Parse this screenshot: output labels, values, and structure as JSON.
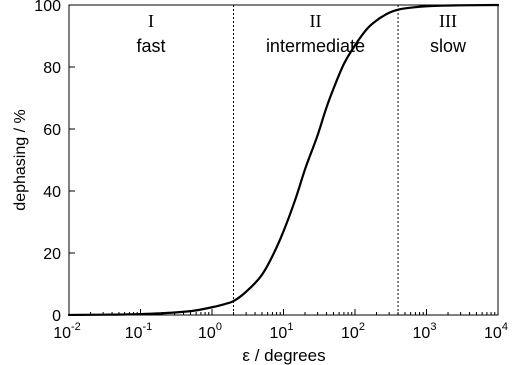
{
  "chart_data": {
    "type": "line",
    "title": "",
    "xlabel": "ε / degrees",
    "ylabel": "dephasing / %",
    "xscale": "log",
    "xlim": [
      0.01,
      10000
    ],
    "ylim": [
      0,
      100
    ],
    "grid": false,
    "x_ticks": [
      {
        "base": "10",
        "exp": "-2",
        "value": 0.01
      },
      {
        "base": "10",
        "exp": "-1",
        "value": 0.1
      },
      {
        "base": "10",
        "exp": "0",
        "value": 1
      },
      {
        "base": "10",
        "exp": "1",
        "value": 10
      },
      {
        "base": "10",
        "exp": "2",
        "value": 100
      },
      {
        "base": "10",
        "exp": "3",
        "value": 1000
      },
      {
        "base": "10",
        "exp": "4",
        "value": 10000
      }
    ],
    "y_ticks": [
      "0",
      "20",
      "40",
      "60",
      "80",
      "100"
    ],
    "series": [
      {
        "x": [
          0.01,
          0.03,
          0.1,
          0.3,
          0.6,
          1,
          1.5,
          2,
          3,
          5,
          7,
          10,
          15,
          20,
          30,
          40,
          50,
          70,
          100,
          150,
          200,
          300,
          400,
          700,
          1000,
          3000,
          10000
        ],
        "y": [
          0.02,
          0.1,
          0.3,
          0.8,
          1.5,
          2.5,
          3.5,
          4.5,
          7.5,
          13,
          19,
          27,
          38,
          47,
          58,
          67,
          73,
          81,
          87,
          92.5,
          95,
          97.5,
          98.5,
          99.3,
          99.6,
          99.9,
          100
        ]
      }
    ],
    "region_boundaries": [
      2,
      400
    ],
    "regions": [
      {
        "numeral": "I",
        "label": "fast",
        "x_center": 0.14
      },
      {
        "numeral": "II",
        "label": "intermediate",
        "x_center": 28
      },
      {
        "numeral": "III",
        "label": "slow",
        "x_center": 2000
      }
    ]
  }
}
